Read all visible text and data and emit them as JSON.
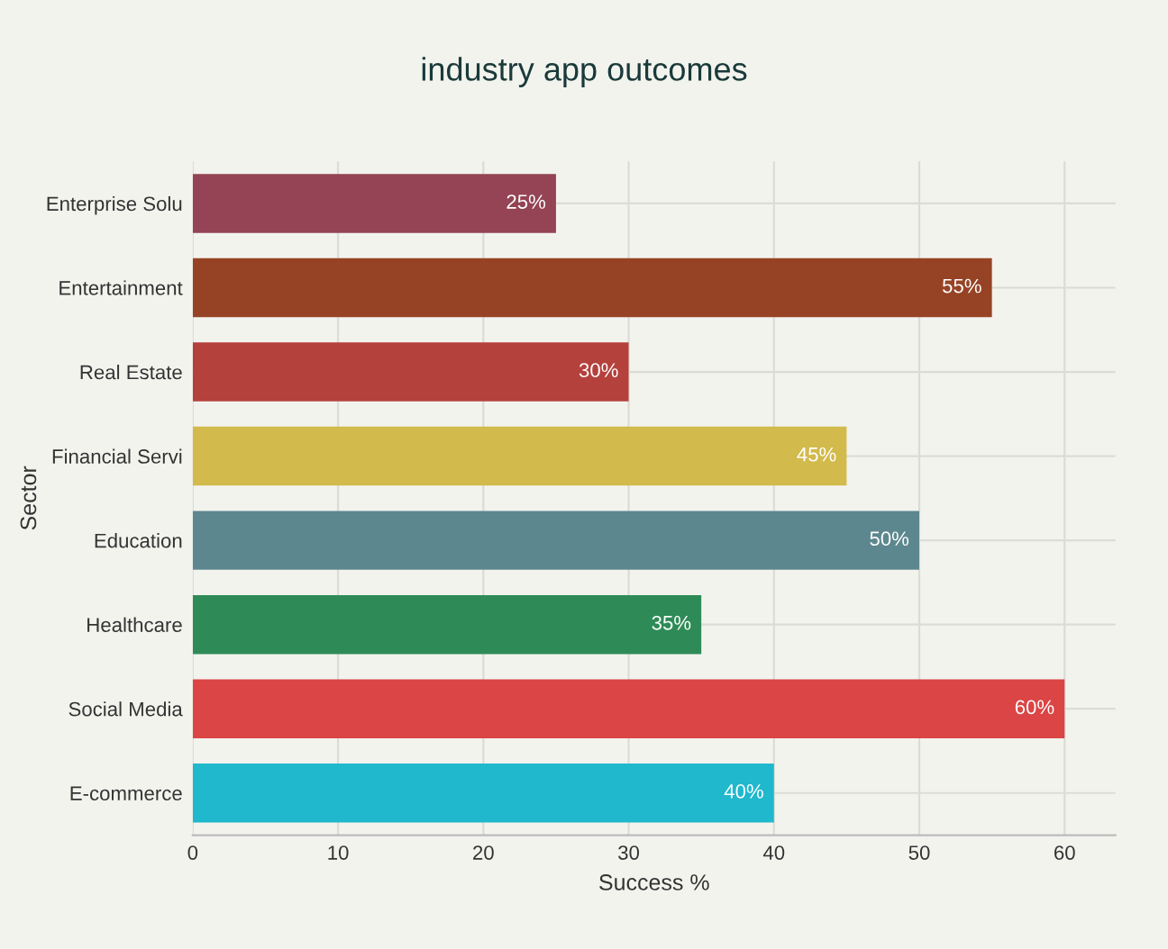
{
  "chart_data": {
    "type": "bar",
    "orientation": "horizontal",
    "title": "industry app outcomes",
    "xlabel": "Success %",
    "ylabel": "Sector",
    "categories": [
      "Enterprise Solu",
      "Entertainment",
      "Real Estate",
      "Financial Servi",
      "Education",
      "Healthcare",
      "Social Media",
      "E-commerce"
    ],
    "values": [
      25,
      55,
      30,
      45,
      50,
      35,
      60,
      40
    ],
    "colors": [
      "#944454",
      "#964325",
      "#b4413c",
      "#d2ba4c",
      "#5d878f",
      "#2e8b57",
      "#db4545",
      "#1fb8cd"
    ],
    "value_labels": [
      "25%",
      "55%",
      "30%",
      "45%",
      "50%",
      "35%",
      "60%",
      "40%"
    ],
    "xlim": [
      0,
      63.5
    ],
    "xticks": [
      0,
      10,
      20,
      30,
      40,
      50,
      60
    ],
    "grid": true
  }
}
